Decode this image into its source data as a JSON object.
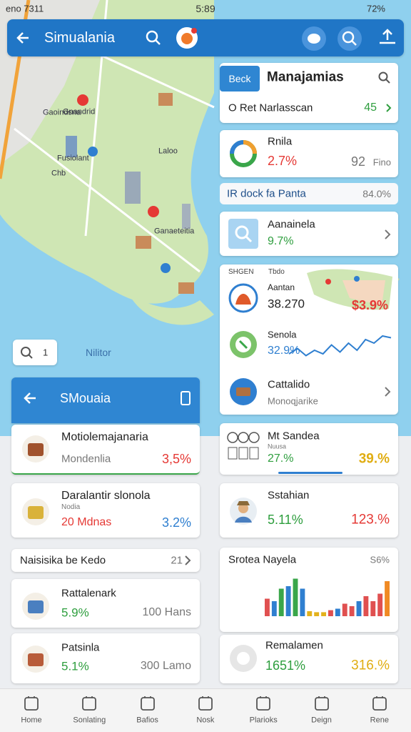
{
  "status_bar": {
    "carrier": "eno 7311",
    "time": "5:89",
    "battery": "72%"
  },
  "header": {
    "title": "Simualania"
  },
  "map": {
    "labels": [
      "Gnandrid",
      "Fusiolant",
      "Laloo",
      "Chb",
      "Gaoindsna",
      "Ganaeteitia"
    ],
    "search_value": "1",
    "filter_label": "Nilitor"
  },
  "left_panel": {
    "title": "SMouaia",
    "items": [
      {
        "title": "Motiolemajanaria",
        "subtitle": "Mondenlia",
        "value": "3,5%"
      },
      {
        "title": "Daralantir slonola",
        "tag": "Nodia",
        "subtitle": "20 Mdnas",
        "value": "3.2%"
      }
    ],
    "section": {
      "title": "Naisisika be Kedo",
      "count": "21"
    },
    "places": [
      {
        "title": "Rattalenark",
        "value": "5.9%",
        "detail": "100 Hans"
      },
      {
        "title": "Patsinla",
        "value": "5.1%",
        "detail": "300 Lamo"
      }
    ]
  },
  "right_panel": {
    "tab": "Beck",
    "title": "Manajamias",
    "row": {
      "label": "O Ret Narlasscan",
      "value": "45"
    },
    "summary": {
      "title": "Rnila",
      "value": "2.7%",
      "count": "92",
      "unit": "Fino"
    },
    "section": {
      "title": "IR dock fa Panta",
      "value": "84.0%"
    },
    "search_card": {
      "title": "Aanainela",
      "value": "9.7%"
    },
    "group": {
      "header_left": "SHGEN",
      "header_right": "Tbdo",
      "rows": [
        {
          "label": "Aantan",
          "value": "38.270",
          "change": "$3.9%"
        },
        {
          "label": "Senola",
          "value": "32.9%"
        },
        {
          "label": "Cattalido",
          "subtitle": "Monoqjarike"
        }
      ]
    },
    "sparkline": {
      "values": [
        3,
        4.5,
        2.5,
        4,
        3,
        5.5,
        3.5,
        6,
        4,
        7,
        6,
        8,
        7.5
      ],
      "ylim": [
        0,
        10
      ],
      "color": "#2f7fd0"
    },
    "stats": [
      {
        "title": "Mt Sandea",
        "tag": "Nuusa",
        "value": "27.%",
        "change": "39.%"
      },
      {
        "title": "Sstahian",
        "value": "5.11%",
        "change": "123.%"
      }
    ],
    "bar_card": {
      "title": "Srotea Nayela",
      "value": "S6%",
      "ylim": [
        0,
        100
      ],
      "bars": [
        35,
        30,
        55,
        60,
        75,
        55,
        10,
        8,
        8,
        12,
        15,
        25,
        20,
        30,
        40,
        30,
        45,
        70
      ],
      "colors": [
        "#e05050",
        "#2f7fd0",
        "#3aa64a",
        "#2f7fd0",
        "#3aa64a",
        "#2f7fd0",
        "#e3b21c",
        "#e3b21c",
        "#e3b21c",
        "#e05050",
        "#2f7fd0",
        "#e05050",
        "#e05050",
        "#2f7fd0",
        "#e05050",
        "#e05050",
        "#e05050",
        "#f08a24"
      ]
    },
    "footer_card": {
      "title": "Remalamen",
      "value": "1651%",
      "change": "316.%"
    }
  },
  "nav": [
    "Home",
    "Sonlating",
    "Bafios",
    "Nosk",
    "Plarioks",
    "Deign",
    "Rene"
  ]
}
